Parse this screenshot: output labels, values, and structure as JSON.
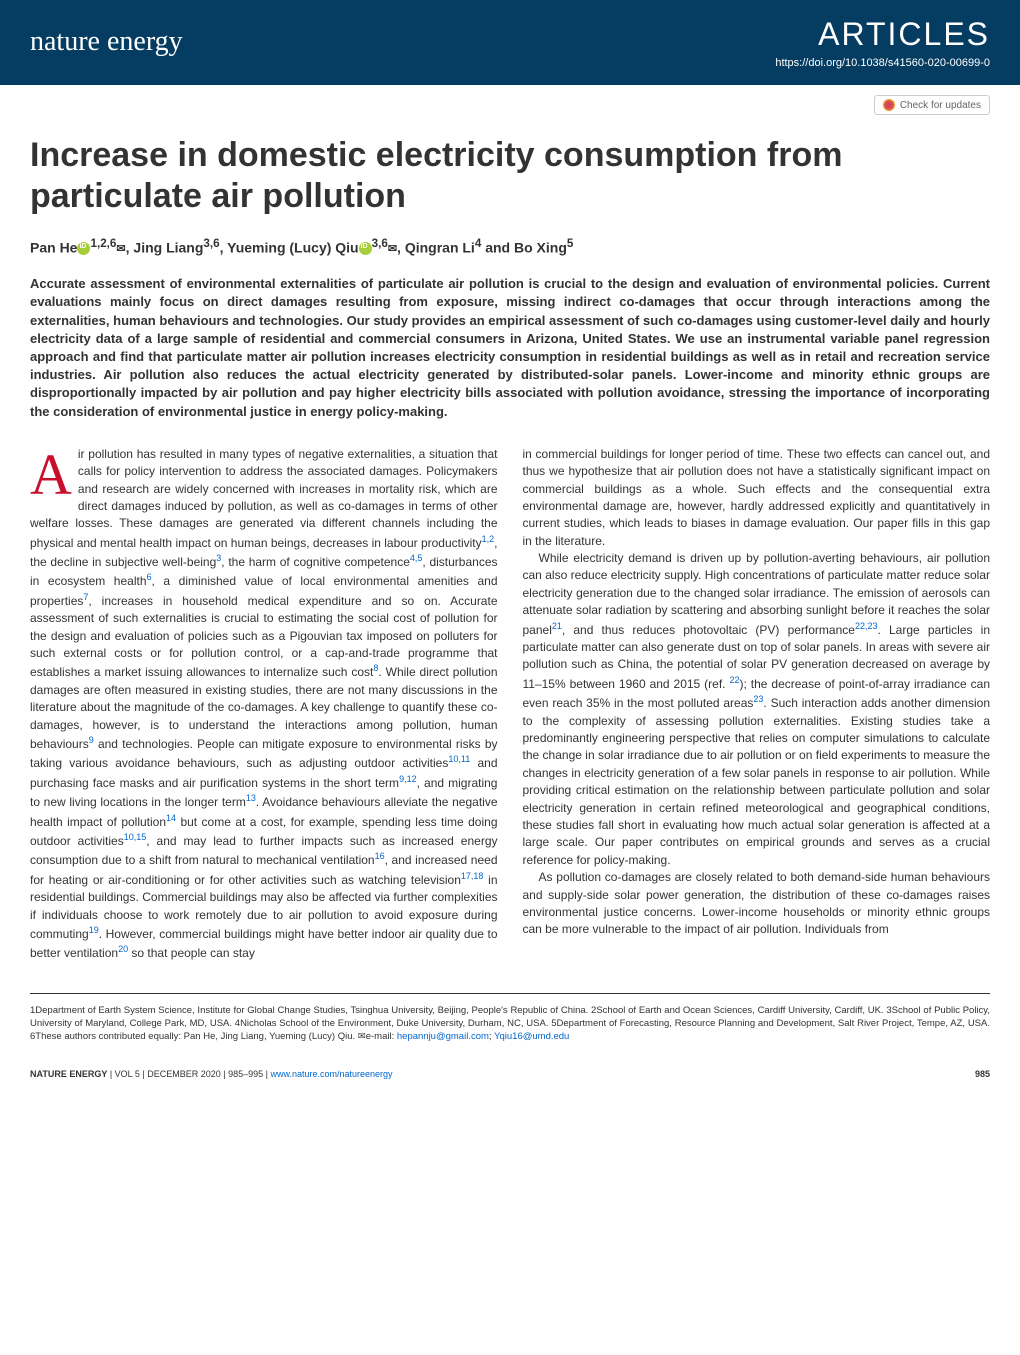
{
  "header": {
    "journal_name": "nature energy",
    "section_label": "ARTICLES",
    "doi": "https://doi.org/10.1038/s41560-020-00699-0",
    "check_updates": "Check for updates"
  },
  "title": "Increase in domestic electricity consumption from particulate air pollution",
  "authors_html": "Pan He [orcid] 1,2,6 [mail], Jing Liang3,6, Yueming (Lucy) Qiu [orcid] 3,6 [mail], Qingran Li4 and Bo Xing5",
  "authors": {
    "a1": "Pan He",
    "a1_sup": "1,2,6",
    "a2": ", Jing Liang",
    "a2_sup": "3,6",
    "a3": ", Yueming (Lucy) Qiu",
    "a3_sup": "3,6",
    "a4": ", Qingran Li",
    "a4_sup": "4",
    "a5": " and Bo Xing",
    "a5_sup": "5"
  },
  "abstract": "Accurate assessment of environmental externalities of particulate air pollution is crucial to the design and evaluation of environmental policies. Current evaluations mainly focus on direct damages resulting from exposure, missing indirect co-damages that occur through interactions among the externalities, human behaviours and technologies. Our study provides an empirical assessment of such co-damages using customer-level daily and hourly electricity data of a large sample of residential and commercial consumers in Arizona, United States. We use an instrumental variable panel regression approach and find that particulate matter air pollution increases electricity consumption in residential buildings as well as in retail and recreation service industries. Air pollution also reduces the actual electricity generated by distributed-solar panels. Lower-income and minority ethnic groups are disproportionally impacted by air pollution and pay higher electricity bills associated with pollution avoidance, stressing the importance of incorporating the consideration of environmental justice in energy policy-making.",
  "col1": {
    "dropcap": "A",
    "p1a": "ir pollution has resulted in many types of negative externalities, a situation that calls for policy intervention to address the associated damages. Policymakers and research are widely concerned with increases in mortality risk, which are direct damages induced by pollution, as well as co-damages in terms of other welfare losses. These damages are generated via different channels including the physical and mental health impact on human beings, decreases in labour productivity",
    "s1": "1,2",
    "p1b": ", the decline in subjective well-being",
    "s2": "3",
    "p1c": ", the harm of cognitive competence",
    "s3": "4,5",
    "p1d": ", disturbances in ecosystem health",
    "s4": "6",
    "p1e": ", a diminished value of local environmental amenities and properties",
    "s5": "7",
    "p1f": ", increases in household medical expenditure and so on. Accurate assessment of such externalities is crucial to estimating the social cost of pollution for the design and evaluation of policies such as a Pigouvian tax imposed on polluters for such external costs or for pollution control, or a cap-and-trade programme that establishes a market issuing allowances to internalize such cost",
    "s6": "8",
    "p1g": ". While direct pollution damages are often measured in existing studies, there are not many discussions in the literature about the magnitude of the co-damages. A key challenge to quantify these co-damages, however, is to understand the interactions among pollution, human behaviours",
    "s7": "9",
    "p1h": " and technologies. People can mitigate exposure to environmental risks by taking various avoidance behaviours, such as adjusting outdoor activities",
    "s8": "10,11",
    "p1i": " and purchasing face masks and air purification systems in the short term",
    "s9": "9,12",
    "p1j": ", and migrating to new living locations in the longer term",
    "s10": "13",
    "p1k": ". Avoidance behaviours alleviate the negative health impact of pollution",
    "s11": "14",
    "p1l": " but come at a cost, for example, spending less time doing outdoor activities",
    "s12": "10,15",
    "p1m": ", and may lead to further impacts such as increased energy consumption due to a shift from natural to mechanical ventilation",
    "s13": "16",
    "p1n": ", and increased need for heating or air-conditioning or for other activities such as watching television",
    "s14": "17,18",
    "p1o": " in residential buildings. Commercial buildings may also be affected via further complexities if individuals choose to work remotely due to air pollution to avoid exposure during commuting",
    "s15": "19",
    "p1p": ". However, commercial buildings might have better indoor air quality due to better ventilation",
    "s16": "20",
    "p1q": " so that people can stay"
  },
  "col2": {
    "p1": "in commercial buildings for longer period of time. These two effects can cancel out, and thus we hypothesize that air pollution does not have a statistically significant impact on commercial buildings as a whole. Such effects and the consequential extra environmental damage are, however, hardly addressed explicitly and quantitatively in current studies, which leads to biases in damage evaluation. Our paper fills in this gap in the literature.",
    "p2a": "While electricity demand is driven up by pollution-averting behaviours, air pollution can also reduce electricity supply. High concentrations of particulate matter reduce solar electricity generation due to the changed solar irradiance. The emission of aerosols can attenuate solar radiation by scattering and absorbing sunlight before it reaches the solar panel",
    "s1": "21",
    "p2b": ", and thus reduces photovoltaic (PV) performance",
    "s2": "22,23",
    "p2c": ". Large particles in particulate matter can also generate dust on top of solar panels. In areas with severe air pollution such as China, the potential of solar PV generation decreased on average by 11–15% between 1960 and 2015 (ref. ",
    "s3": "22",
    "p2d": "); the decrease of point-of-array irradiance can even reach 35% in the most polluted areas",
    "s4": "23",
    "p2e": ". Such interaction adds another dimension to the complexity of assessing pollution externalities. Existing studies take a predominantly engineering perspective that relies on computer simulations to calculate the change in solar irradiance due to air pollution or on field experiments to measure the changes in electricity generation of a few solar panels in response to air pollution. While providing critical estimation on the relationship between particulate pollution and solar electricity generation in certain refined meteorological and geographical conditions, these studies fall short in evaluating how much actual solar generation is affected at a large scale. Our paper contributes on empirical grounds and serves as a crucial reference for policy-making.",
    "p3": "As pollution co-damages are closely related to both demand-side human behaviours and supply-side solar power generation, the distribution of these co-damages raises environmental justice concerns. Lower-income households or minority ethnic groups can be more vulnerable to the impact of air pollution. Individuals from"
  },
  "affiliations": "1Department of Earth System Science, Institute for Global Change Studies, Tsinghua University, Beijing, People's Republic of China. 2School of Earth and Ocean Sciences, Cardiff University, Cardiff, UK. 3School of Public Policy, University of Maryland, College Park, MD, USA. 4Nicholas School of the Environment, Duke University, Durham, NC, USA. 5Department of Forecasting, Resource Planning and Development, Salt River Project, Tempe, AZ, USA. 6These authors contributed equally: Pan He, Jing Liang, Yueming (Lucy) Qiu. ✉e-mail: ",
  "emails": {
    "e1": "hepannju@gmail.com",
    "sep": "; ",
    "e2": "Yqiu16@umd.edu"
  },
  "footer": {
    "journal_ref_bold": "NATURE ENERGY",
    "journal_ref": " | VOL 5 | DECEMBER 2020 | 985–995 | ",
    "url": "www.nature.com/natureenergy",
    "page": "985"
  }
}
